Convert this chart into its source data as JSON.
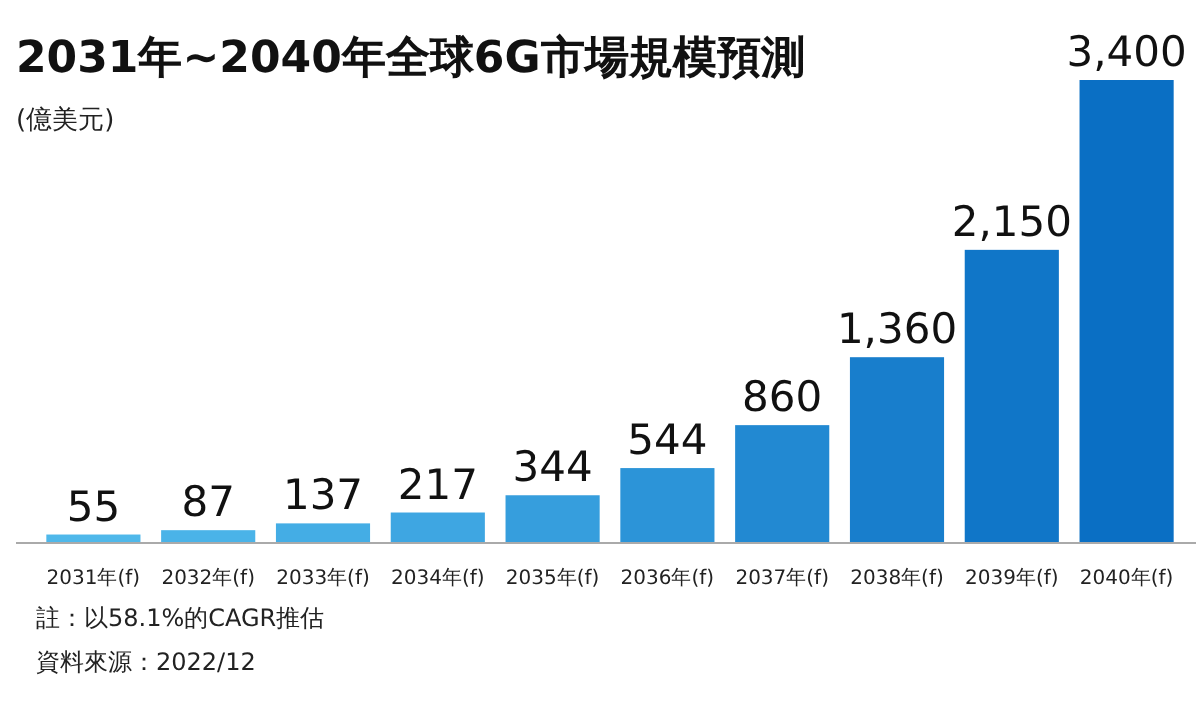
{
  "chart_data": {
    "type": "bar",
    "title": "2031年~2040年全球6G市場規模預測",
    "subtitle": "(億美元)",
    "categories": [
      "2031年(f)",
      "2032年(f)",
      "2033年(f)",
      "2034年(f)",
      "2035年(f)",
      "2036年(f)",
      "2037年(f)",
      "2038年(f)",
      "2039年(f)",
      "2040年(f)"
    ],
    "values": [
      55,
      87,
      137,
      217,
      344,
      544,
      860,
      1360,
      2150,
      3400
    ],
    "colors": [
      "#4fb8ea",
      "#4ab3e8",
      "#44ade5",
      "#3ea6e2",
      "#369edd",
      "#2c94d8",
      "#2289d2",
      "#187ecc",
      "#1076c8",
      "#0a6fc4"
    ],
    "value_labels": [
      "55",
      "87",
      "137",
      "217",
      "344",
      "544",
      "860",
      "1,360",
      "2,150",
      "3,400"
    ],
    "annotations": [
      "註：以58.1%的CAGR推估",
      "資料來源：2022/12"
    ]
  }
}
